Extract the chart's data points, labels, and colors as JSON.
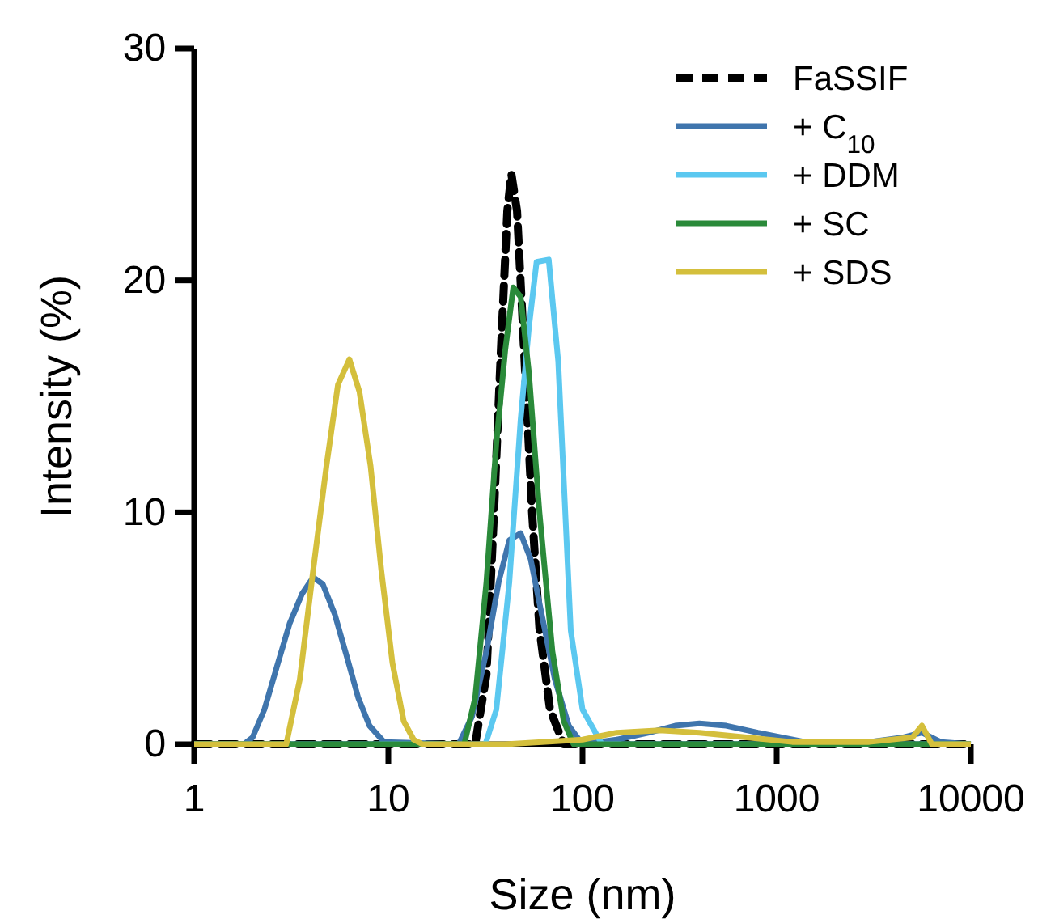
{
  "chart_data": {
    "type": "line",
    "xlabel": "Size (nm)",
    "ylabel": "Intensity (%)",
    "log": "x",
    "xlim": [
      1,
      10000
    ],
    "xticks": [
      1,
      10,
      100,
      1000,
      10000
    ],
    "ylim": [
      0,
      30
    ],
    "yticks": [
      0,
      10,
      20,
      30
    ],
    "grid": false,
    "legend": "top right",
    "marker": "none",
    "series": [
      {
        "name": "FaSSIF",
        "color": "#000000",
        "line_style": "dashed",
        "x": [
          1,
          28,
          32,
          35,
          38,
          41,
          43,
          46,
          50,
          55,
          60,
          68,
          80,
          10000
        ],
        "values": [
          0,
          0,
          3,
          10,
          17,
          23,
          24.6,
          23,
          17,
          10,
          5,
          1.5,
          0,
          0
        ]
      },
      {
        "name": "+ C$_{10}$",
        "color": "#3f75ad",
        "line_style": "solid",
        "x": [
          1,
          1.8,
          2.0,
          2.3,
          2.7,
          3.1,
          3.6,
          4.1,
          4.6,
          5.3,
          6.1,
          7,
          8,
          9.5,
          23,
          27,
          32,
          37,
          42,
          48,
          54,
          62,
          72,
          85,
          100,
          150,
          220,
          300,
          400,
          550,
          800,
          1400,
          3000,
          4500,
          5600,
          7000,
          10000
        ],
        "values": [
          0,
          0,
          0.3,
          1.5,
          3.5,
          5.2,
          6.5,
          7.2,
          6.9,
          5.6,
          3.8,
          2,
          0.8,
          0.1,
          0,
          1.2,
          4,
          7,
          8.8,
          9.1,
          8,
          5.5,
          2.8,
          0.8,
          0,
          0.2,
          0.5,
          0.8,
          0.9,
          0.8,
          0.5,
          0.1,
          0.1,
          0.3,
          0.5,
          0.1,
          0
        ]
      },
      {
        "name": "+ DDM",
        "color": "#5bc8f0",
        "line_style": "solid",
        "x": [
          1,
          31.6,
          36,
          42,
          48,
          53,
          58,
          67,
          75,
          87,
          100,
          126,
          10000
        ],
        "values": [
          0,
          0,
          1.5,
          7,
          14,
          18,
          20.8,
          20.9,
          16.5,
          4.9,
          1.5,
          0,
          0
        ]
      },
      {
        "name": "+ SC",
        "color": "#2a8a3a",
        "line_style": "solid",
        "x": [
          1,
          24.6,
          28,
          32,
          36,
          40,
          44,
          48,
          53,
          60,
          70,
          80,
          90,
          10000
        ],
        "values": [
          0,
          0,
          2,
          7,
          13,
          17,
          19.7,
          19.3,
          16,
          10,
          4,
          1,
          0,
          0
        ]
      },
      {
        "name": "+ SDS",
        "color": "#d4bf3c",
        "line_style": "solid",
        "x": [
          1,
          2.98,
          3.5,
          4.1,
          4.8,
          5.5,
          6.3,
          7.1,
          8.1,
          9.2,
          10.5,
          12,
          13.5,
          15,
          40,
          100,
          150,
          250,
          400,
          700,
          1200,
          3000,
          5000,
          5600,
          6300,
          10000
        ],
        "values": [
          0,
          0,
          2.8,
          7.5,
          12,
          15.5,
          16.6,
          15.2,
          12,
          7.5,
          3.5,
          1,
          0.2,
          0,
          0,
          0.2,
          0.5,
          0.6,
          0.5,
          0.3,
          0.1,
          0.1,
          0.3,
          0.8,
          0,
          0
        ]
      }
    ]
  }
}
